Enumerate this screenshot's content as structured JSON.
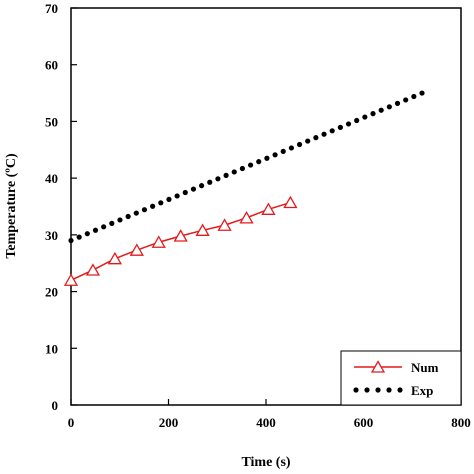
{
  "chart_data": {
    "type": "line",
    "xlabel": "Time (s)",
    "ylabel": "Temperature (ºC)",
    "xlim": [
      0,
      800
    ],
    "ylim": [
      0,
      70
    ],
    "x_ticks": [
      0,
      200,
      400,
      600,
      800
    ],
    "y_ticks": [
      0,
      10,
      20,
      30,
      40,
      50,
      60,
      70
    ],
    "grid": false,
    "legend_position": "bottom-right",
    "series": [
      {
        "name": "Num",
        "color": "#e31a1c",
        "style": "line-triangle-markers",
        "x": [
          0,
          45,
          90,
          135,
          180,
          225,
          270,
          315,
          360,
          405,
          450
        ],
        "y": [
          22.0,
          23.8,
          25.8,
          27.3,
          28.7,
          29.8,
          30.8,
          31.7,
          33.0,
          34.5,
          35.7
        ]
      },
      {
        "name": "Exp",
        "color": "#000000",
        "style": "dotted",
        "x": [
          0,
          720
        ],
        "y": [
          29.0,
          55.0
        ]
      }
    ]
  }
}
